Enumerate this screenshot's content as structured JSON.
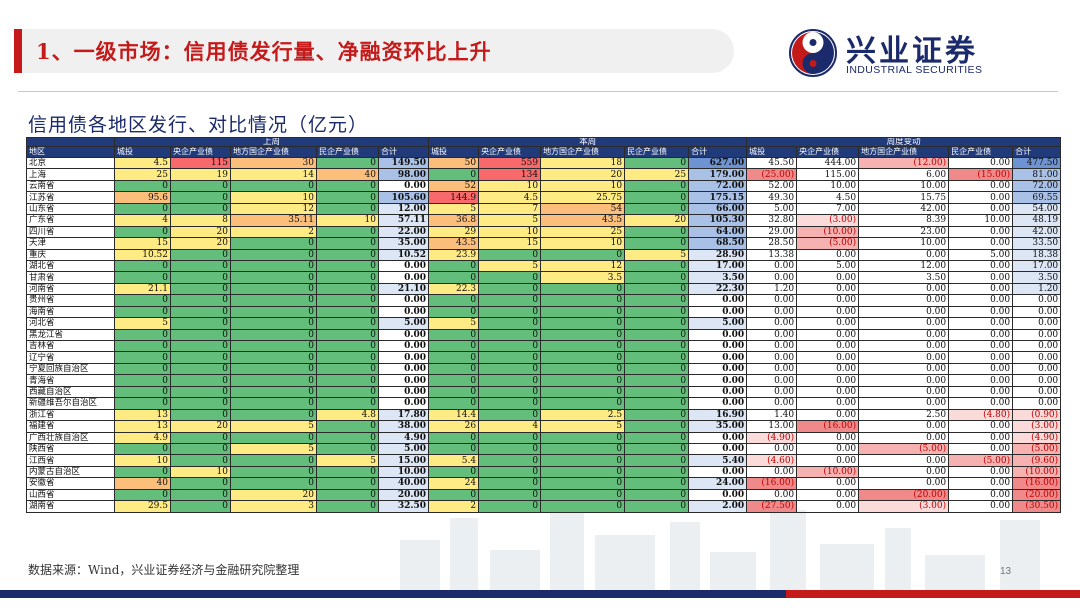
{
  "header": {
    "title": "1、一级市场：信用债发行量、净融资环比上升",
    "logo_cn": "兴业证券",
    "logo_en": "INDUSTRIAL SECURITIES"
  },
  "subtitle": "信用债各地区发行、对比情况（亿元）",
  "table": {
    "group_headers": [
      "上周",
      "本周",
      "周度变动"
    ],
    "region_header": "地区",
    "col_headers": [
      "城投",
      "央企产业债",
      "地方国企产业债",
      "民企产业债",
      "合计",
      "城投",
      "央企产业债",
      "地方国企产业债",
      "民企产业债",
      "合计",
      "城投",
      "央企产业债",
      "地方国企产业债",
      "民企产业债",
      "合计"
    ],
    "rows": [
      {
        "r": "北京",
        "v": [
          "4.5",
          "115",
          "30",
          "0",
          "149.50",
          "50",
          "559",
          "18",
          "0",
          "627.00",
          "45.50",
          "444.00",
          "(12.00)",
          "0.00",
          "477.50"
        ]
      },
      {
        "r": "上海",
        "v": [
          "25",
          "19",
          "14",
          "40",
          "98.00",
          "0",
          "134",
          "20",
          "25",
          "179.00",
          "(25.00)",
          "115.00",
          "6.00",
          "(15.00)",
          "81.00"
        ]
      },
      {
        "r": "云南省",
        "v": [
          "0",
          "0",
          "0",
          "0",
          "0.00",
          "52",
          "10",
          "10",
          "0",
          "72.00",
          "52.00",
          "10.00",
          "10.00",
          "0.00",
          "72.00"
        ]
      },
      {
        "r": "江苏省",
        "v": [
          "95.6",
          "0",
          "10",
          "0",
          "105.60",
          "144.9",
          "4.5",
          "25.75",
          "0",
          "175.15",
          "49.30",
          "4.50",
          "15.75",
          "0.00",
          "69.55"
        ]
      },
      {
        "r": "山东省",
        "v": [
          "0",
          "0",
          "12",
          "0",
          "12.00",
          "5",
          "7",
          "54",
          "0",
          "66.00",
          "5.00",
          "7.00",
          "42.00",
          "0.00",
          "54.00"
        ]
      },
      {
        "r": "广东省",
        "v": [
          "4",
          "8",
          "35.11",
          "10",
          "57.11",
          "36.8",
          "5",
          "43.5",
          "20",
          "105.30",
          "32.80",
          "(3.00)",
          "8.39",
          "10.00",
          "48.19"
        ]
      },
      {
        "r": "四川省",
        "v": [
          "0",
          "20",
          "2",
          "0",
          "22.00",
          "29",
          "10",
          "25",
          "0",
          "64.00",
          "29.00",
          "(10.00)",
          "23.00",
          "0.00",
          "42.00"
        ]
      },
      {
        "r": "天津",
        "v": [
          "15",
          "20",
          "0",
          "0",
          "35.00",
          "43.5",
          "15",
          "10",
          "0",
          "68.50",
          "28.50",
          "(5.00)",
          "10.00",
          "0.00",
          "33.50"
        ]
      },
      {
        "r": "重庆",
        "v": [
          "10.52",
          "0",
          "0",
          "0",
          "10.52",
          "23.9",
          "0",
          "0",
          "5",
          "28.90",
          "13.38",
          "0.00",
          "0.00",
          "5.00",
          "18.38"
        ]
      },
      {
        "r": "湖北省",
        "v": [
          "0",
          "0",
          "0",
          "0",
          "0.00",
          "0",
          "5",
          "12",
          "0",
          "17.00",
          "0.00",
          "5.00",
          "12.00",
          "0.00",
          "17.00"
        ]
      },
      {
        "r": "甘肃省",
        "v": [
          "0",
          "0",
          "0",
          "0",
          "0.00",
          "0",
          "0",
          "3.5",
          "0",
          "3.50",
          "0.00",
          "0.00",
          "3.50",
          "0.00",
          "3.50"
        ]
      },
      {
        "r": "河南省",
        "v": [
          "21.1",
          "0",
          "0",
          "0",
          "21.10",
          "22.3",
          "0",
          "0",
          "0",
          "22.30",
          "1.20",
          "0.00",
          "0.00",
          "0.00",
          "1.20"
        ]
      },
      {
        "r": "贵州省",
        "v": [
          "0",
          "0",
          "0",
          "0",
          "0.00",
          "0",
          "0",
          "0",
          "0",
          "0.00",
          "0.00",
          "0.00",
          "0.00",
          "0.00",
          "0.00"
        ]
      },
      {
        "r": "海南省",
        "v": [
          "0",
          "0",
          "0",
          "0",
          "0.00",
          "0",
          "0",
          "0",
          "0",
          "0.00",
          "0.00",
          "0.00",
          "0.00",
          "0.00",
          "0.00"
        ]
      },
      {
        "r": "河北省",
        "v": [
          "5",
          "0",
          "0",
          "0",
          "5.00",
          "5",
          "0",
          "0",
          "0",
          "5.00",
          "0.00",
          "0.00",
          "0.00",
          "0.00",
          "0.00"
        ]
      },
      {
        "r": "黑龙江省",
        "v": [
          "0",
          "0",
          "0",
          "0",
          "0.00",
          "0",
          "0",
          "0",
          "0",
          "0.00",
          "0.00",
          "0.00",
          "0.00",
          "0.00",
          "0.00"
        ]
      },
      {
        "r": "吉林省",
        "v": [
          "0",
          "0",
          "0",
          "0",
          "0.00",
          "0",
          "0",
          "0",
          "0",
          "0.00",
          "0.00",
          "0.00",
          "0.00",
          "0.00",
          "0.00"
        ]
      },
      {
        "r": "辽宁省",
        "v": [
          "0",
          "0",
          "0",
          "0",
          "0.00",
          "0",
          "0",
          "0",
          "0",
          "0.00",
          "0.00",
          "0.00",
          "0.00",
          "0.00",
          "0.00"
        ]
      },
      {
        "r": "宁夏回族自治区",
        "v": [
          "0",
          "0",
          "0",
          "0",
          "0.00",
          "0",
          "0",
          "0",
          "0",
          "0.00",
          "0.00",
          "0.00",
          "0.00",
          "0.00",
          "0.00"
        ]
      },
      {
        "r": "青海省",
        "v": [
          "0",
          "0",
          "0",
          "0",
          "0.00",
          "0",
          "0",
          "0",
          "0",
          "0.00",
          "0.00",
          "0.00",
          "0.00",
          "0.00",
          "0.00"
        ]
      },
      {
        "r": "西藏自治区",
        "v": [
          "0",
          "0",
          "0",
          "0",
          "0.00",
          "0",
          "0",
          "0",
          "0",
          "0.00",
          "0.00",
          "0.00",
          "0.00",
          "0.00",
          "0.00"
        ]
      },
      {
        "r": "新疆维吾尔自治区",
        "v": [
          "0",
          "0",
          "0",
          "0",
          "0.00",
          "0",
          "0",
          "0",
          "0",
          "0.00",
          "0.00",
          "0.00",
          "0.00",
          "0.00",
          "0.00"
        ]
      },
      {
        "r": "浙江省",
        "v": [
          "13",
          "0",
          "0",
          "4.8",
          "17.80",
          "14.4",
          "0",
          "2.5",
          "0",
          "16.90",
          "1.40",
          "0.00",
          "2.50",
          "(4.80)",
          "(0.90)"
        ]
      },
      {
        "r": "福建省",
        "v": [
          "13",
          "20",
          "5",
          "0",
          "38.00",
          "26",
          "4",
          "5",
          "0",
          "35.00",
          "13.00",
          "(16.00)",
          "0.00",
          "0.00",
          "(3.00)"
        ]
      },
      {
        "r": "广西壮族自治区",
        "v": [
          "4.9",
          "0",
          "0",
          "0",
          "4.90",
          "0",
          "0",
          "0",
          "0",
          "0.00",
          "(4.90)",
          "0.00",
          "0.00",
          "0.00",
          "(4.90)"
        ]
      },
      {
        "r": "陕西省",
        "v": [
          "0",
          "0",
          "5",
          "0",
          "5.00",
          "0",
          "0",
          "0",
          "0",
          "0.00",
          "0.00",
          "0.00",
          "(5.00)",
          "0.00",
          "(5.00)"
        ]
      },
      {
        "r": "江西省",
        "v": [
          "10",
          "0",
          "0",
          "5",
          "15.00",
          "5.4",
          "0",
          "0",
          "0",
          "5.40",
          "(4.60)",
          "0.00",
          "0.00",
          "(5.00)",
          "(9.60)"
        ]
      },
      {
        "r": "内蒙古自治区",
        "v": [
          "0",
          "10",
          "0",
          "0",
          "10.00",
          "0",
          "0",
          "0",
          "0",
          "0.00",
          "0.00",
          "(10.00)",
          "0.00",
          "0.00",
          "(10.00)"
        ]
      },
      {
        "r": "安徽省",
        "v": [
          "40",
          "0",
          "0",
          "0",
          "40.00",
          "24",
          "0",
          "0",
          "0",
          "24.00",
          "(16.00)",
          "0.00",
          "0.00",
          "0.00",
          "(16.00)"
        ]
      },
      {
        "r": "山西省",
        "v": [
          "0",
          "0",
          "20",
          "0",
          "20.00",
          "0",
          "0",
          "0",
          "0",
          "0.00",
          "0.00",
          "0.00",
          "(20.00)",
          "0.00",
          "(20.00)"
        ]
      },
      {
        "r": "湖南省",
        "v": [
          "29.5",
          "0",
          "3",
          "0",
          "32.50",
          "2",
          "0",
          "0",
          "0",
          "2.00",
          "(27.50)",
          "0.00",
          "(3.00)",
          "0.00",
          "(30.50)"
        ]
      }
    ]
  },
  "footer": {
    "source": "数据来源：Wind，兴业证券经济与金融研究院整理",
    "page_number": "13"
  },
  "colors": {
    "brand_red": "#c41a1a",
    "brand_navy": "#1b2a6b",
    "table_header": "#203a7a",
    "scale_high": "#f8696b",
    "scale_mid": "#ffeb84",
    "scale_low": "#63be7b"
  }
}
